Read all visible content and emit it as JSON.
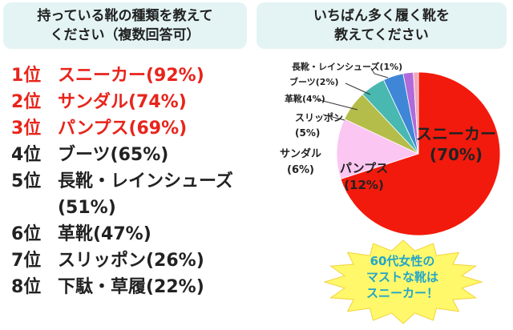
{
  "question_left": {
    "line1": "持っている靴の種類を教えて",
    "line2": "ください（複数回答可）"
  },
  "question_right": {
    "line1": "いちばん多く履く靴を",
    "line2": "教えてください"
  },
  "ranking": [
    {
      "rank": "1位",
      "text": "スニーカー(92%)",
      "color": "#e8241b"
    },
    {
      "rank": "2位",
      "text": "サンダル(74%)",
      "color": "#e8241b"
    },
    {
      "rank": "3位",
      "text": "パンプス(69%)",
      "color": "#e8241b"
    },
    {
      "rank": "4位",
      "text": "ブーツ(65%)",
      "color": "#222222"
    },
    {
      "rank": "5位",
      "text": "長靴・レインシューズ(51%)",
      "color": "#222222"
    },
    {
      "rank": "6位",
      "text": "革靴(47%)",
      "color": "#222222"
    },
    {
      "rank": "7位",
      "text": "スリッポン(26%)",
      "color": "#222222"
    },
    {
      "rank": "8位",
      "text": "下駄・草履(22%)",
      "color": "#222222"
    }
  ],
  "chart_data": {
    "type": "pie",
    "slices": [
      {
        "label": "スニーカー",
        "value": 70,
        "color": "#f21a0c"
      },
      {
        "label": "パンプス",
        "value": 12,
        "color": "#fbc6f2"
      },
      {
        "label": "サンダル",
        "value": 6,
        "color": "#b5bd4a"
      },
      {
        "label": "スリッポン",
        "value": 5,
        "color": "#48b8b0"
      },
      {
        "label": "革靴",
        "value": 4,
        "color": "#3f87d6"
      },
      {
        "label": "ブーツ",
        "value": 2,
        "color": "#b06ad9"
      },
      {
        "label": "長靴・レインシューズ",
        "value": 1,
        "color": "#f5a7b8"
      }
    ],
    "slice_labels": [
      {
        "line1": "スニーカー",
        "line2": "(70%)"
      },
      {
        "line1": "パンプス",
        "line2": "(12%)"
      },
      {
        "line1": "サンダル",
        "line2": "(6%)"
      },
      {
        "line1": "スリッポン",
        "line2": "(5%)"
      },
      {
        "line1": "革靴(4%)",
        "line2": ""
      },
      {
        "line1": "ブーツ(2%)",
        "line2": ""
      },
      {
        "line1": "長靴・レインシューズ(1%)",
        "line2": ""
      }
    ]
  },
  "callout": {
    "line1": "60代女性の",
    "line2": "マストな靴は",
    "line3": "スニーカー！",
    "fill": "#fff86a"
  }
}
